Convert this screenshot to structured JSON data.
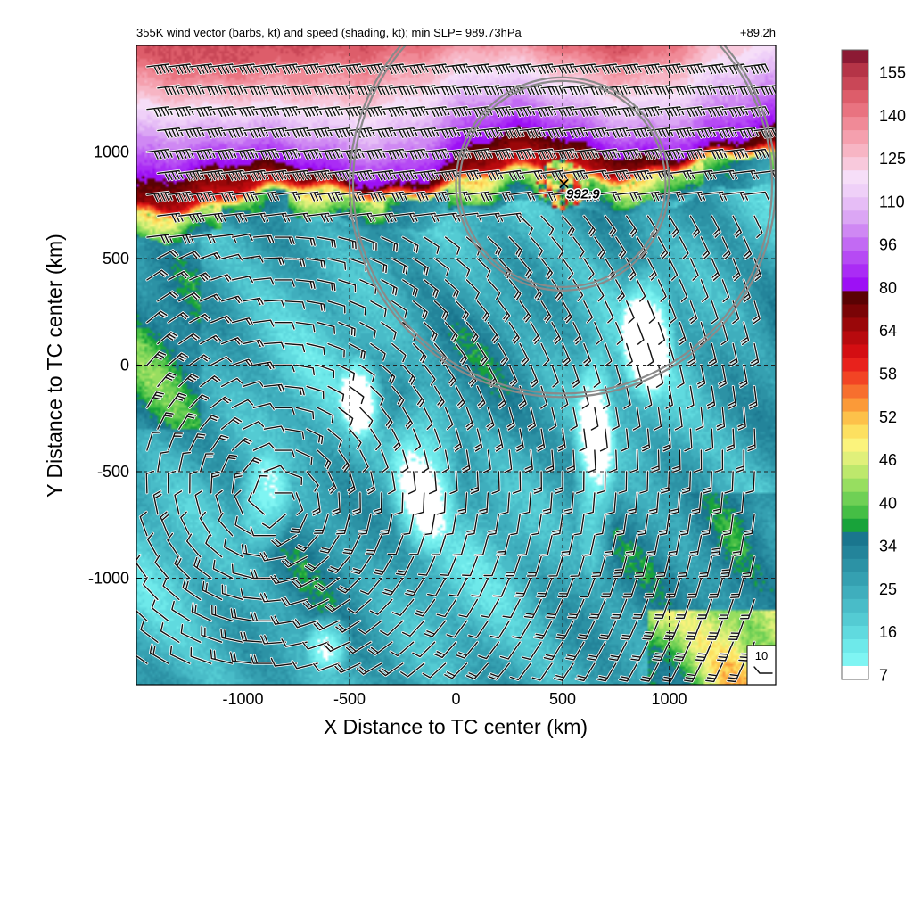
{
  "chart_data": {
    "type": "heatmap",
    "title": "355K wind vector (barbs, kt) and speed (shading, kt); min SLP= 989.73hPa",
    "forecast_time": "+89.2h",
    "xlabel": "X Distance to TC center (km)",
    "ylabel": "Y Distance to TC center (km)",
    "xlim": [
      -1500,
      1500
    ],
    "ylim": [
      -1500,
      1500
    ],
    "x_ticks": [
      -1000,
      -500,
      0,
      500,
      1000
    ],
    "x_tick_labels": [
      "-1000",
      "-500",
      "0",
      "500",
      "1000"
    ],
    "y_ticks": [
      1000,
      500,
      0,
      -500,
      -1000
    ],
    "y_tick_labels": [
      "1000",
      "500",
      "0",
      "-500",
      "-1000"
    ],
    "grid": true,
    "tc_center": {
      "x": 500,
      "y": 850,
      "label": "992.9"
    },
    "range_rings_km": [
      500,
      1000
    ],
    "reference_barb_label": "10",
    "colorbar": {
      "labels": [
        "155",
        "140",
        "125",
        "110",
        "96",
        "80",
        "64",
        "58",
        "52",
        "46",
        "40",
        "34",
        "25",
        "16",
        "7"
      ],
      "levels": [
        7,
        10,
        13,
        16,
        19,
        22,
        25,
        28,
        31,
        34,
        36,
        38,
        40,
        42,
        44,
        46,
        48,
        50,
        52,
        54,
        56,
        58,
        60,
        62,
        64,
        68,
        72,
        76,
        80,
        84,
        88,
        92,
        96,
        101,
        106,
        110,
        115,
        120,
        125,
        130,
        135,
        140,
        145,
        150,
        155,
        160
      ],
      "colors": [
        "#ffffff",
        "#7ff5f3",
        "#6ee9ea",
        "#60dadf",
        "#54cbd3",
        "#49bcc8",
        "#3faebd",
        "#35a0b1",
        "#2c92a5",
        "#23849a",
        "#1a768e",
        "#18a33a",
        "#45be45",
        "#6fd055",
        "#97de60",
        "#bde86c",
        "#e0f07a",
        "#fbf37c",
        "#fde060",
        "#fdc14a",
        "#fb9a38",
        "#f76f2e",
        "#f24424",
        "#e8221c",
        "#d40e12",
        "#b80a0e",
        "#9a0709",
        "#7a0406",
        "#5a0203",
        "#9d10f5",
        "#aa2cf5",
        "#b64af4",
        "#c26af3",
        "#cf88f3",
        "#dba6f4",
        "#e6bdf6",
        "#efd0f8",
        "#f6def8",
        "#f8c9dc",
        "#f7b5c4",
        "#f5a0ae",
        "#f08a97",
        "#e97380",
        "#dd5d6a",
        "#c94757",
        "#b53447",
        "#8c1a34"
      ]
    }
  }
}
